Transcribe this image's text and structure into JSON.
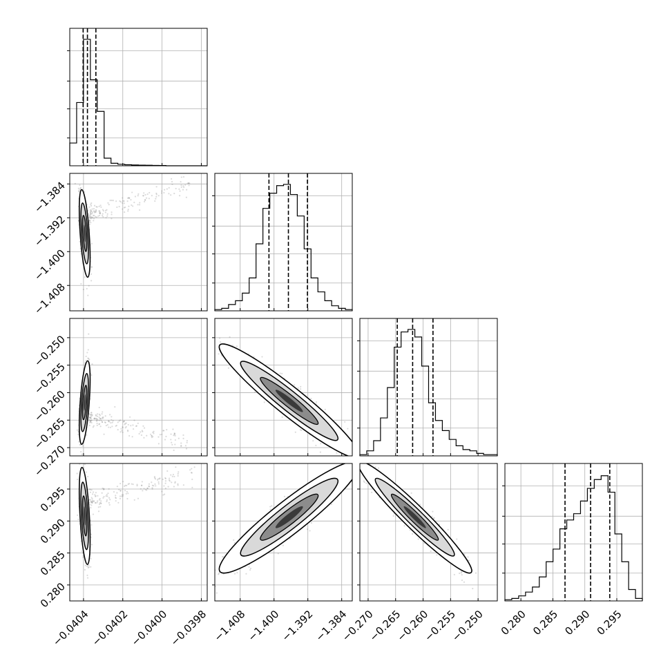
{
  "chart_data": {
    "type": "corner",
    "description_of_panels": "Lower-triangle corner plot of 4 parameters: 1D histograms on the diagonal with dashed quantile lines, 2D scatter density with contours off-diagonal.",
    "params": [
      {
        "ticks": [
          -0.0404,
          -0.0402,
          -0.04,
          -0.0398
        ],
        "tick_labels": [
          "−0.0404",
          "−0.0402",
          "−0.0400",
          "−0.0398"
        ],
        "range": [
          -0.04047,
          -0.03977
        ],
        "quantiles": [
          -0.040402,
          -0.04038,
          -0.040337
        ],
        "hist": [
          0.18,
          0.5,
          1.0,
          0.68,
          0.43,
          0.06,
          0.02,
          0.012,
          0.008,
          0.006,
          0.005,
          0.004,
          0.003,
          0.002,
          0.0,
          0.0,
          0.0,
          0.0,
          0.0,
          0.0
        ]
      },
      {
        "ticks": [
          -1.408,
          -1.4,
          -1.392,
          -1.384
        ],
        "tick_labels": [
          "−1.408",
          "−1.400",
          "−1.392",
          "−1.384"
        ],
        "range": [
          -1.414,
          -1.3815
        ],
        "quantiles": [
          -1.4012,
          -1.3966,
          -1.3921
        ],
        "hist": [
          0.01,
          0.02,
          0.05,
          0.08,
          0.14,
          0.26,
          0.53,
          0.81,
          0.93,
          0.99,
          1.0,
          0.92,
          0.75,
          0.49,
          0.26,
          0.15,
          0.08,
          0.04,
          0.02,
          0.01
        ]
      },
      {
        "ticks": [
          -0.27,
          -0.265,
          -0.26,
          -0.255,
          -0.25
        ],
        "tick_labels": [
          "−0.270",
          "−0.265",
          "−0.260",
          "−0.255",
          "−0.250"
        ],
        "range": [
          -0.2715,
          -0.2465
        ],
        "quantiles": [
          -0.2647,
          -0.2619,
          -0.2582
        ],
        "hist": [
          0.01,
          0.04,
          0.12,
          0.3,
          0.54,
          0.86,
          0.98,
          1.0,
          0.94,
          0.71,
          0.42,
          0.28,
          0.2,
          0.13,
          0.08,
          0.05,
          0.04,
          0.02,
          0.01,
          0.01
        ]
      },
      {
        "ticks": [
          0.28,
          0.285,
          0.29,
          0.295
        ],
        "tick_labels": [
          "0.280",
          "0.285",
          "0.290",
          "0.295"
        ],
        "range": [
          0.2775,
          0.299
        ],
        "quantiles": [
          0.2869,
          0.2909,
          0.2939
        ],
        "hist": [
          0.01,
          0.02,
          0.04,
          0.07,
          0.11,
          0.19,
          0.31,
          0.41,
          0.57,
          0.64,
          0.69,
          0.79,
          0.89,
          0.96,
          0.99,
          0.86,
          0.53,
          0.31,
          0.09,
          0.02
        ]
      }
    ],
    "pairs": [
      {
        "x": 0,
        "y": 1,
        "mean": [
          -0.040394,
          -1.3957
        ],
        "sd": [
          1.2e-05,
          0.0045
        ],
        "rho": -0.55,
        "tail_to": [
          -0.03985,
          -1.3835
        ]
      },
      {
        "x": 0,
        "y": 2,
        "mean": [
          -0.040394,
          -0.2618
        ],
        "sd": [
          1.2e-05,
          0.0033
        ],
        "rho": 0.55,
        "tail_to": [
          -0.03985,
          -0.2695
        ]
      },
      {
        "x": 0,
        "y": 3,
        "mean": [
          -0.040394,
          0.2908
        ],
        "sd": [
          1.2e-05,
          0.0033
        ],
        "rho": -0.5,
        "tail_to": [
          -0.03985,
          0.2975
        ]
      },
      {
        "x": 1,
        "y": 2,
        "mean": [
          -1.3964,
          -0.2615
        ],
        "sd": [
          0.0072,
          0.0045
        ],
        "rho": -0.95
      },
      {
        "x": 1,
        "y": 3,
        "mean": [
          -1.3964,
          0.2906
        ],
        "sd": [
          0.0072,
          0.0038
        ],
        "rho": 0.93
      },
      {
        "x": 2,
        "y": 3,
        "mean": [
          -0.2615,
          0.2906
        ],
        "sd": [
          0.0045,
          0.0038
        ],
        "rho": -0.96
      }
    ],
    "grid": true,
    "colors": {
      "ink": "#000000",
      "grid": "#b0b0b0",
      "scatter": "#7f7f7f",
      "fill_mid": "#8c8c8c",
      "fill_inner": "#3a3a3a"
    }
  }
}
